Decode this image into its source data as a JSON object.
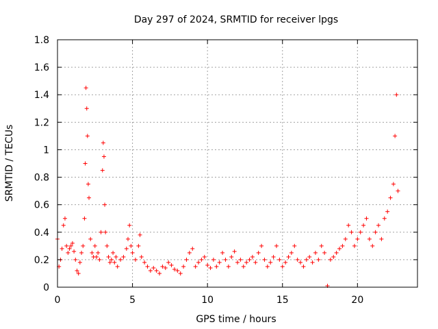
{
  "chart_data": {
    "type": "scatter",
    "title": "Day 297 of 2024, SRMTID for receiver lpgs",
    "xlabel": "GPS time / hours",
    "ylabel": "SRMTID / TECUs",
    "xlim": [
      0,
      24
    ],
    "ylim": [
      0,
      1.8
    ],
    "x_ticks": [
      0,
      5,
      10,
      15,
      20
    ],
    "x_tick_labels": [
      "0",
      "5",
      "10",
      "15",
      "20"
    ],
    "y_ticks": [
      0,
      0.2,
      0.4,
      0.6,
      0.8,
      1.0,
      1.2,
      1.4,
      1.6,
      1.8
    ],
    "y_tick_labels": [
      "0",
      "0.2",
      "0.4",
      "0.6",
      "0.8",
      "1",
      "1.2",
      "1.4",
      "1.6",
      "1.8"
    ],
    "grid": true,
    "marker": "+",
    "color": "#ff0000",
    "series": [
      {
        "name": "SRMTID",
        "x": [
          0.0,
          0.1,
          0.2,
          0.3,
          0.4,
          0.5,
          0.6,
          0.7,
          0.8,
          0.9,
          1.0,
          1.1,
          1.2,
          1.3,
          1.4,
          1.5,
          1.6,
          1.7,
          1.8,
          1.85,
          1.9,
          1.95,
          2.0,
          2.05,
          2.1,
          2.2,
          2.3,
          2.4,
          2.5,
          2.6,
          2.7,
          2.8,
          2.9,
          3.0,
          3.05,
          3.1,
          3.15,
          3.2,
          3.3,
          3.4,
          3.5,
          3.6,
          3.7,
          3.8,
          3.9,
          4.0,
          4.2,
          4.4,
          4.6,
          4.7,
          4.8,
          4.9,
          5.0,
          5.2,
          5.4,
          5.5,
          5.6,
          5.8,
          6.0,
          6.2,
          6.4,
          6.6,
          6.8,
          7.0,
          7.2,
          7.4,
          7.6,
          7.8,
          8.0,
          8.2,
          8.4,
          8.6,
          8.8,
          9.0,
          9.2,
          9.4,
          9.6,
          9.8,
          10.0,
          10.2,
          10.4,
          10.6,
          10.8,
          11.0,
          11.2,
          11.4,
          11.6,
          11.8,
          12.0,
          12.2,
          12.4,
          12.6,
          12.8,
          13.0,
          13.2,
          13.4,
          13.6,
          13.8,
          14.0,
          14.2,
          14.4,
          14.6,
          14.8,
          15.0,
          15.2,
          15.4,
          15.6,
          15.8,
          16.0,
          16.2,
          16.4,
          16.6,
          16.8,
          17.0,
          17.2,
          17.4,
          17.6,
          17.8,
          18.0,
          18.2,
          18.4,
          18.6,
          18.8,
          19.0,
          19.2,
          19.4,
          19.6,
          19.8,
          20.0,
          20.2,
          20.4,
          20.6,
          20.8,
          21.0,
          21.2,
          21.4,
          21.6,
          21.8,
          22.0,
          22.2,
          22.4,
          22.5,
          22.6,
          22.7
        ],
        "values": [
          0.35,
          0.15,
          0.2,
          0.28,
          0.45,
          0.5,
          0.3,
          0.25,
          0.28,
          0.3,
          0.32,
          0.26,
          0.2,
          0.12,
          0.1,
          0.18,
          0.25,
          0.3,
          0.5,
          0.9,
          1.45,
          1.3,
          1.1,
          0.75,
          0.65,
          0.35,
          0.25,
          0.22,
          0.3,
          0.22,
          0.25,
          0.2,
          0.4,
          0.85,
          1.05,
          0.95,
          0.6,
          0.4,
          0.3,
          0.22,
          0.18,
          0.2,
          0.25,
          0.18,
          0.22,
          0.15,
          0.2,
          0.22,
          0.28,
          0.35,
          0.45,
          0.3,
          0.25,
          0.2,
          0.3,
          0.38,
          0.22,
          0.18,
          0.15,
          0.12,
          0.14,
          0.12,
          0.1,
          0.15,
          0.14,
          0.18,
          0.16,
          0.13,
          0.12,
          0.1,
          0.15,
          0.2,
          0.25,
          0.28,
          0.15,
          0.18,
          0.2,
          0.22,
          0.16,
          0.14,
          0.2,
          0.15,
          0.18,
          0.25,
          0.2,
          0.15,
          0.22,
          0.26,
          0.18,
          0.2,
          0.15,
          0.18,
          0.2,
          0.22,
          0.18,
          0.25,
          0.3,
          0.2,
          0.15,
          0.18,
          0.22,
          0.3,
          0.2,
          0.15,
          0.18,
          0.22,
          0.25,
          0.3,
          0.2,
          0.18,
          0.15,
          0.2,
          0.22,
          0.18,
          0.25,
          0.2,
          0.3,
          0.25,
          0.01,
          0.2,
          0.22,
          0.25,
          0.28,
          0.3,
          0.35,
          0.45,
          0.4,
          0.3,
          0.35,
          0.4,
          0.45,
          0.5,
          0.35,
          0.3,
          0.4,
          0.45,
          0.35,
          0.5,
          0.55,
          0.65,
          0.75,
          1.1,
          1.4,
          0.7
        ]
      }
    ]
  }
}
